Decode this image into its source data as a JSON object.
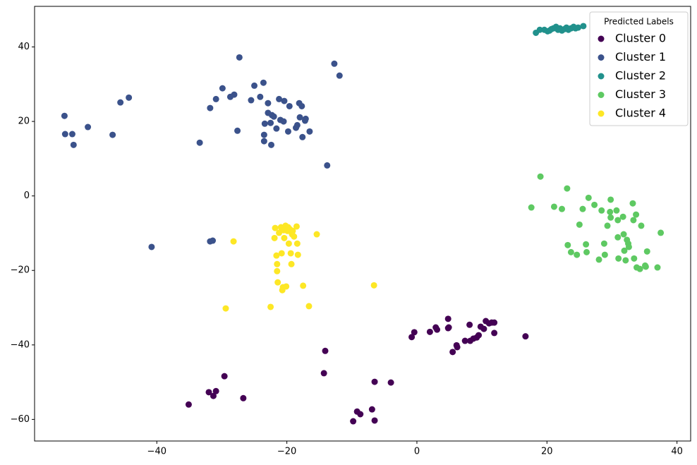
{
  "chart_data": {
    "type": "scatter",
    "xlim": [
      -58.8,
      42.1
    ],
    "ylim": [
      -65.8,
      50.9
    ],
    "xticks": [
      {
        "value": -40,
        "label": "−40"
      },
      {
        "value": -20,
        "label": "−20"
      },
      0,
      20,
      40
    ],
    "yticks": [
      {
        "value": -60,
        "label": "−60"
      },
      {
        "value": -40,
        "label": "−40"
      },
      {
        "value": -20,
        "label": "−20"
      },
      0,
      20,
      40
    ],
    "grid": false,
    "legend": {
      "title": "Predicted Labels",
      "loc": "upper right"
    },
    "series": [
      {
        "name": "Cluster 0",
        "color": "#440154",
        "x": [
          -35.1,
          -32.0,
          -31.3,
          -30.9,
          -29.6,
          -26.7,
          -14.1,
          -14.3,
          -9.8,
          -9.2,
          -8.7,
          -6.9,
          -6.5,
          -6.5,
          -4.0,
          -0.8,
          -0.4,
          2.0,
          2.9,
          3.1,
          4.8,
          4.9,
          5.5,
          6.1,
          6.2,
          7.4,
          8.1,
          8.2,
          8.7,
          9.2,
          9.5,
          9.8,
          10.3,
          10.6,
          11.1,
          11.5,
          11.9,
          11.9,
          16.7,
          4.8
        ],
        "y": [
          -56.0,
          -52.7,
          -53.7,
          -52.4,
          -48.4,
          -54.3,
          -41.6,
          -47.6,
          -60.5,
          -57.9,
          -58.6,
          -57.3,
          -49.9,
          -60.3,
          -50.1,
          -37.9,
          -36.6,
          -36.5,
          -35.3,
          -35.9,
          -33.0,
          -35.3,
          -41.9,
          -40.1,
          -40.6,
          -38.9,
          -34.6,
          -38.9,
          -38.3,
          -38.0,
          -37.4,
          -35.1,
          -35.7,
          -33.6,
          -34.2,
          -34.0,
          -34.0,
          -36.8,
          -37.7,
          -35.5
        ]
      },
      {
        "name": "Cluster 1",
        "color": "#3b528b",
        "x": [
          -54.2,
          -54.1,
          -53.0,
          -52.8,
          -50.6,
          -46.8,
          -45.6,
          -44.3,
          -40.8,
          -33.4,
          -31.8,
          -30.9,
          -29.9,
          -28.7,
          -28.1,
          -27.6,
          -27.3,
          -25.5,
          -25.0,
          -24.1,
          -23.6,
          -23.5,
          -23.5,
          -23.4,
          -22.9,
          -22.9,
          -22.5,
          -22.4,
          -22.3,
          -22.0,
          -21.6,
          -21.2,
          -21.0,
          -20.5,
          -20.4,
          -19.8,
          -19.6,
          -18.6,
          -18.4,
          -18.1,
          -18.0,
          -17.7,
          -17.6,
          -17.2,
          -17.1,
          -16.5,
          -13.8,
          -12.7,
          -11.9,
          -31.8,
          -31.4
        ],
        "y": [
          21.5,
          16.6,
          16.6,
          13.7,
          18.5,
          16.4,
          25.1,
          26.4,
          -13.7,
          14.3,
          23.6,
          26.0,
          28.9,
          26.6,
          27.2,
          17.5,
          37.2,
          25.7,
          29.6,
          26.6,
          30.4,
          16.4,
          14.7,
          19.4,
          24.9,
          22.3,
          19.6,
          13.7,
          21.7,
          21.3,
          18.1,
          26.0,
          20.4,
          20.0,
          25.5,
          17.3,
          24.1,
          18.3,
          19.0,
          24.9,
          21.1,
          24.1,
          15.8,
          20.2,
          20.7,
          17.3,
          8.2,
          35.5,
          32.3,
          -12.2,
          -12.0
        ]
      },
      {
        "name": "Cluster 2",
        "color": "#21918c",
        "x": [
          18.3,
          18.9,
          19.6,
          20.1,
          20.4,
          20.7,
          21.0,
          21.4,
          21.7,
          22.0,
          22.3,
          22.7,
          23.0,
          23.3,
          23.7,
          24.1,
          24.4,
          24.8,
          25.6
        ],
        "y": [
          43.8,
          44.6,
          44.6,
          44.2,
          44.4,
          44.8,
          45.0,
          45.4,
          44.6,
          45.0,
          44.4,
          44.8,
          45.2,
          44.6,
          45.0,
          45.4,
          45.0,
          45.2,
          45.6
        ]
      },
      {
        "name": "Cluster 3",
        "color": "#5ec962",
        "x": [
          17.6,
          19.0,
          21.1,
          22.3,
          23.1,
          23.2,
          23.7,
          24.6,
          25.0,
          25.5,
          26.0,
          26.1,
          26.4,
          27.3,
          28.0,
          28.4,
          28.8,
          28.9,
          29.3,
          29.7,
          29.8,
          29.8,
          30.7,
          30.9,
          30.9,
          31.0,
          31.7,
          31.8,
          31.9,
          32.1,
          32.3,
          32.5,
          32.6,
          33.2,
          33.3,
          33.4,
          33.7,
          33.8,
          34.3,
          34.5,
          35.1,
          35.2,
          35.4,
          37.0,
          37.5
        ],
        "y": [
          -3.1,
          5.2,
          -2.9,
          -3.5,
          2.0,
          -13.2,
          -15.1,
          -15.8,
          -7.7,
          -3.5,
          -13.0,
          -15.1,
          -0.5,
          -2.4,
          -17.1,
          -3.9,
          -12.8,
          -15.8,
          -8.0,
          -4.3,
          -1.0,
          -5.8,
          -3.9,
          -6.5,
          -11.1,
          -16.8,
          -5.6,
          -10.3,
          -14.7,
          -17.3,
          -11.8,
          -12.8,
          -13.7,
          -2.0,
          -6.5,
          -16.8,
          -5.0,
          -19.2,
          -19.6,
          -8.0,
          -18.7,
          -19.0,
          -14.9,
          -19.2,
          -9.9
        ]
      },
      {
        "name": "Cluster 4",
        "color": "#fde725",
        "x": [
          -28.2,
          -29.4,
          -22.5,
          -21.8,
          -21.9,
          -21.6,
          -21.5,
          -21.5,
          -21.4,
          -20.9,
          -20.8,
          -20.7,
          -20.6,
          -20.4,
          -20.2,
          -20.1,
          -19.9,
          -19.8,
          -19.7,
          -19.5,
          -19.4,
          -19.3,
          -19.2,
          -19.1,
          -18.9,
          -18.5,
          -18.4,
          -18.3,
          -17.5,
          -16.6,
          -15.4,
          -6.6,
          -21.2,
          -20.5
        ],
        "y": [
          -12.2,
          -30.2,
          -29.8,
          -8.6,
          -11.3,
          -16.0,
          -18.3,
          -20.2,
          -23.2,
          -8.4,
          -15.4,
          -25.3,
          -24.5,
          -11.3,
          -8.0,
          -24.3,
          -9.4,
          -8.4,
          -12.8,
          -9.0,
          -15.4,
          -18.3,
          -10.3,
          -9.4,
          -10.9,
          -8.2,
          -12.8,
          -15.8,
          -24.1,
          -29.6,
          -10.3,
          -24.0,
          -9.9,
          -9.2
        ]
      }
    ]
  }
}
